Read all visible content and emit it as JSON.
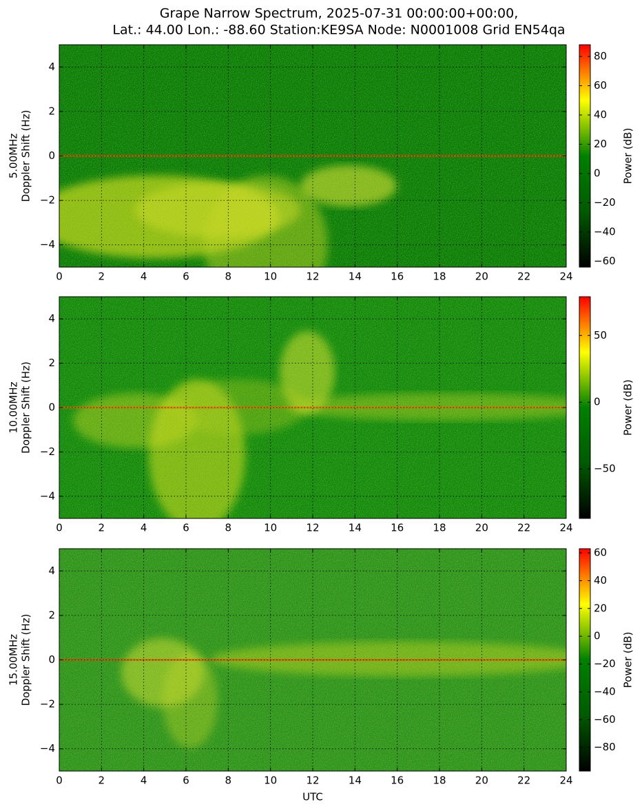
{
  "title": [
    "Grape Narrow Spectrum, 2025-07-31 00:00:00+00:00,",
    "Lat.: 44.00 Lon.: -88.60 Station:KE9SA Node: N0001008 Grid EN54qa"
  ],
  "colormap": [
    "#000000",
    "#005a00",
    "#008000",
    "#ffff00",
    "#ff0000"
  ],
  "chart_data": [
    {
      "type": "spectrogram",
      "ylabel": [
        "5.00MHz",
        "Doppler Shift (Hz)"
      ],
      "xlim": [
        0,
        24
      ],
      "xticks": [
        0,
        2,
        4,
        6,
        8,
        10,
        12,
        14,
        16,
        18,
        20,
        22,
        24
      ],
      "ylim": [
        -5,
        5
      ],
      "yticks": [
        {
          "value": -4,
          "label": "−4"
        },
        {
          "value": -2,
          "label": "−2"
        },
        0,
        2,
        4
      ],
      "grid": true,
      "colorbar": {
        "label": "Power (dB)",
        "clim": [
          -64,
          88
        ],
        "ticks": [
          {
            "value": -60,
            "label": "−60"
          },
          {
            "value": -40,
            "label": "−40"
          },
          {
            "value": -20,
            "label": "−20"
          },
          0,
          20,
          40,
          60,
          80
        ]
      }
    },
    {
      "type": "spectrogram",
      "ylabel": [
        "10.00MHz",
        "Doppler Shift (Hz)"
      ],
      "xlim": [
        0,
        24
      ],
      "xticks": [
        0,
        2,
        4,
        6,
        8,
        10,
        12,
        14,
        16,
        18,
        20,
        22,
        24
      ],
      "ylim": [
        -5,
        5
      ],
      "yticks": [
        {
          "value": -4,
          "label": "−4"
        },
        {
          "value": -2,
          "label": "−2"
        },
        0,
        2,
        4
      ],
      "grid": true,
      "colorbar": {
        "label": "Power (dB)",
        "clim": [
          -87,
          79
        ],
        "ticks": [
          {
            "value": -50,
            "label": "−50"
          },
          0,
          50
        ]
      }
    },
    {
      "type": "spectrogram",
      "ylabel": [
        "15.00MHz",
        "Doppler Shift (Hz)"
      ],
      "xlabel": "UTC",
      "xlim": [
        0,
        24
      ],
      "xticks": [
        0,
        2,
        4,
        6,
        8,
        10,
        12,
        14,
        16,
        18,
        20,
        22,
        24
      ],
      "ylim": [
        -5,
        5
      ],
      "yticks": [
        {
          "value": -4,
          "label": "−4"
        },
        {
          "value": -2,
          "label": "−2"
        },
        0,
        2,
        4
      ],
      "grid": true,
      "colorbar": {
        "label": "Power (dB)",
        "clim": [
          -97,
          63
        ],
        "ticks": [
          {
            "value": -80,
            "label": "−80"
          },
          {
            "value": -60,
            "label": "−60"
          },
          {
            "value": -40,
            "label": "−40"
          },
          {
            "value": -20,
            "label": "−20"
          },
          0,
          20,
          40,
          60
        ]
      }
    }
  ]
}
